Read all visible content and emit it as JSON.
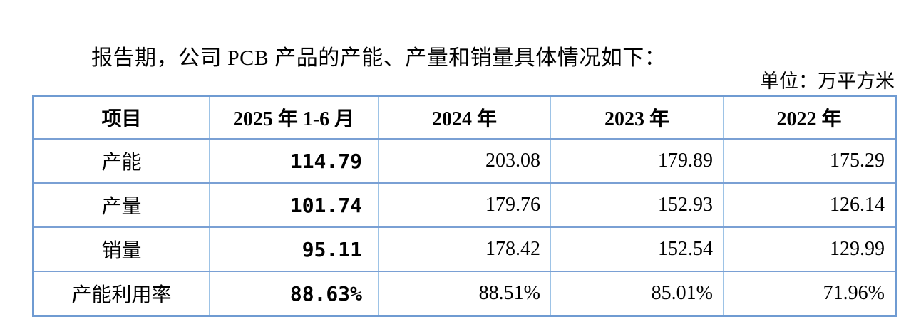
{
  "page": {
    "intro_text": "报告期，公司 PCB 产品的产能、产量和销量具体情况如下：",
    "unit_label": "单位：万平方米"
  },
  "table": {
    "columns": [
      "项目",
      "2025 年 1-6 月",
      "2024 年",
      "2023 年",
      "2022 年"
    ],
    "rows": [
      {
        "label": "产能",
        "values": [
          "114.79",
          "203.08",
          "179.89",
          "175.29"
        ]
      },
      {
        "label": "产量",
        "values": [
          "101.74",
          "179.76",
          "152.93",
          "126.14"
        ]
      },
      {
        "label": "销量",
        "values": [
          "95.11",
          "178.42",
          "152.54",
          "129.99"
        ]
      },
      {
        "label": "产能利用率",
        "values": [
          "88.63%",
          "88.51%",
          "85.01%",
          "71.96%"
        ]
      }
    ]
  },
  "colors": {
    "table_outer_border": "#6f9bd2",
    "table_horizontal_border": "#7aa0d4",
    "table_vertical_border": "#9dc3e6",
    "text": "#000000",
    "background": "#ffffff"
  }
}
